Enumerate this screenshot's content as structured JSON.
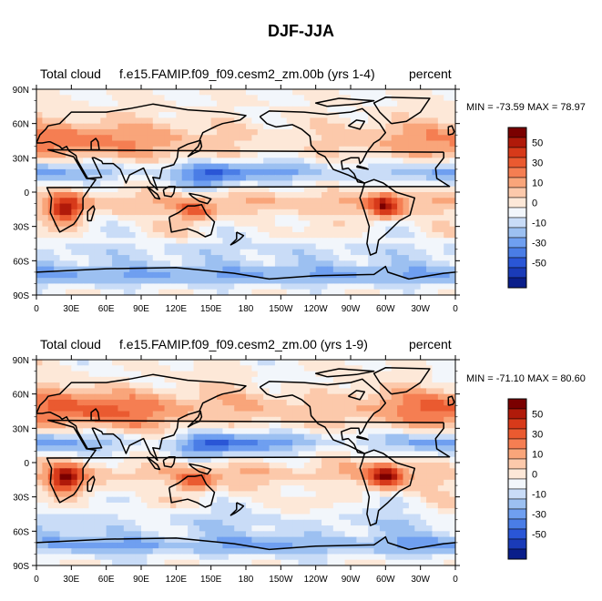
{
  "title": "DJF-JJA",
  "colorbar": {
    "levels": [
      50,
      30,
      10,
      0,
      -10,
      -30,
      -50
    ],
    "colors": [
      "#7a0000",
      "#b01a0a",
      "#d73a1a",
      "#ea5a30",
      "#f57e52",
      "#f9a57a",
      "#fcc9ab",
      "#fde8d8",
      "#f2f6fb",
      "#c9dcf7",
      "#9cc0f1",
      "#6f9ff0",
      "#4a7de6",
      "#2a56d6",
      "#1a3bb8",
      "#0a1e8a"
    ]
  },
  "chart_data": [
    {
      "type": "heatmap",
      "title": "Total cloud",
      "subtitle": "f.e15.FAMIP.f09_f09.cesm2_zm.00b (yrs 1-4)",
      "units": "percent",
      "min": -73.59,
      "max": 78.97,
      "minmax_text": "MIN = -73.59 MAX =  78.97",
      "xlim": [
        0,
        360
      ],
      "ylim": [
        -90,
        90
      ],
      "xtick_labels": [
        "0",
        "30E",
        "60E",
        "90E",
        "120E",
        "150E",
        "180",
        "150W",
        "120W",
        "90W",
        "60W",
        "30W",
        "0"
      ],
      "ytick_labels": [
        "90N",
        "60N",
        "30N",
        "0",
        "30S",
        "60S",
        "90S"
      ]
    },
    {
      "type": "heatmap",
      "title": "Total cloud",
      "subtitle": "f.e15.FAMIP.f09_f09.cesm2_zm.00 (yrs 1-9)",
      "units": "percent",
      "min": -71.1,
      "max": 80.6,
      "minmax_text": "MIN = -71.10 MAX =  80.60",
      "xlim": [
        0,
        360
      ],
      "ylim": [
        -90,
        90
      ],
      "xtick_labels": [
        "0",
        "30E",
        "60E",
        "90E",
        "120E",
        "150E",
        "180",
        "150W",
        "120W",
        "90W",
        "60W",
        "30W",
        "0"
      ],
      "ytick_labels": [
        "90N",
        "60N",
        "30N",
        "0",
        "30S",
        "60S",
        "90S"
      ]
    }
  ]
}
